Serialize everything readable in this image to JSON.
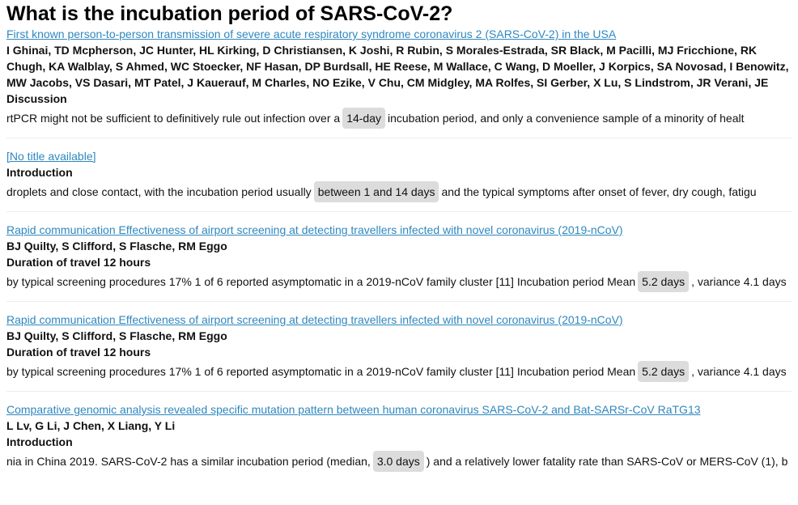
{
  "page": {
    "title": "What is the incubation period of SARS-CoV-2?"
  },
  "results": [
    {
      "title": "First known person-to-person transmission of severe acute respiratory syndrome coronavirus 2 (SARS-CoV-2) in the USA",
      "authors": "I Ghinai, TD Mcpherson, JC Hunter, HL Kirking, D Christiansen, K Joshi, R Rubin, S Morales-Estrada, SR Black, M Pacilli, MJ Fricchione, RK Chugh, KA Walblay, S Ahmed, WC Stoecker, NF Hasan, DP Burdsall, HE Reese, M Wallace, C Wang, D Moeller, J Korpics, SA Novosad, I Benowitz, MW Jacobs, VS Dasari, MT Patel, J Kauerauf, M Charles, NO Ezike, V Chu, CM Midgley, MA Rolfes, SI Gerber, X Lu, S Lindstrom, JR Verani, JE",
      "section": "Discussion",
      "snippet_before": "rtPCR might not be sufficient to definitively rule out infection over a",
      "answer": "14-day",
      "snippet_after": "incubation period, and only a convenience sample of a minority of healt"
    },
    {
      "title": "[No title available]",
      "authors": "",
      "section": "Introduction",
      "snippet_before": "droplets and close contact, with the incubation period usually",
      "answer": "between 1 and 14 days",
      "snippet_after": "and the typical symptoms after onset of fever, dry cough, fatigu"
    },
    {
      "title": "Rapid communication Effectiveness of airport screening at detecting travellers infected with novel coronavirus (2019-nCoV)",
      "authors": "BJ Quilty, S Clifford, S Flasche, RM Eggo",
      "section": "Duration of travel 12 hours",
      "snippet_before": "by typical screening procedures 17% 1 of 6 reported asymptomatic in a 2019-nCoV family cluster [11] Incubation period Mean",
      "answer": "5.2 days",
      "snippet_after": ", variance 4.1 days"
    },
    {
      "title": "Rapid communication Effectiveness of airport screening at detecting travellers infected with novel coronavirus (2019-nCoV)",
      "authors": "BJ Quilty, S Clifford, S Flasche, RM Eggo",
      "section": "Duration of travel 12 hours",
      "snippet_before": "by typical screening procedures 17% 1 of 6 reported asymptomatic in a 2019-nCoV family cluster [11] Incubation period Mean",
      "answer": "5.2 days",
      "snippet_after": ", variance 4.1 days"
    },
    {
      "title": "Comparative genomic analysis revealed specific mutation pattern between human coronavirus SARS-CoV-2 and Bat-SARSr-CoV RaTG13",
      "authors": "L Lv, G Li, J Chen, X Liang, Y Li",
      "section": "Introduction",
      "snippet_before": "nia in China 2019. SARS-CoV-2 has a similar incubation period (median,",
      "answer": "3.0 days",
      "snippet_after": ") and a relatively lower fatality rate than SARS-CoV or MERS-CoV (1), b"
    }
  ]
}
